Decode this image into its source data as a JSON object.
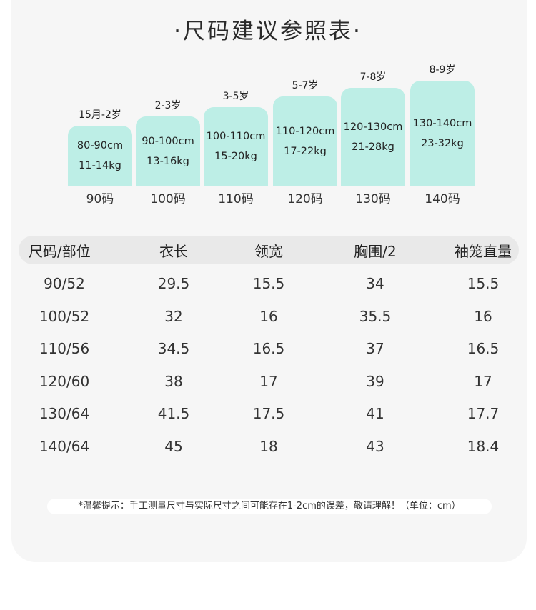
{
  "title": "·尺码建议参照表·",
  "size_bars": [
    {
      "age": "15月-2岁",
      "height": "80-90cm",
      "weight": "11-14kg",
      "size": "90码",
      "fill_level": 0.57
    },
    {
      "age": "2-3岁",
      "height": "90-100cm",
      "weight": "13-16kg",
      "size": "100码",
      "fill_level": 0.66
    },
    {
      "age": "3-5岁",
      "height": "100-110cm",
      "weight": "15-20kg",
      "size": "110码",
      "fill_level": 0.75
    },
    {
      "age": "5-7岁",
      "height": "110-120cm",
      "weight": "17-22kg",
      "size": "120码",
      "fill_level": 0.85
    },
    {
      "age": "7-8岁",
      "height": "120-130cm",
      "weight": "21-28kg",
      "size": "130码",
      "fill_level": 0.93
    },
    {
      "age": "8-9岁",
      "height": "130-140cm",
      "weight": "23-32kg",
      "size": "140码",
      "fill_level": 1.0
    }
  ],
  "table": {
    "headers": [
      "尺码/部位",
      "衣长",
      "领宽",
      "胸围/2",
      "袖笼直量"
    ],
    "rows": [
      [
        "90/52",
        "29.5",
        "15.5",
        "34",
        "15.5"
      ],
      [
        "100/52",
        "32",
        "16",
        "35.5",
        "16"
      ],
      [
        "110/56",
        "34.5",
        "16.5",
        "37",
        "16.5"
      ],
      [
        "120/60",
        "38",
        "17",
        "39",
        "17"
      ],
      [
        "130/64",
        "41.5",
        "17.5",
        "41",
        "17.7"
      ],
      [
        "140/64",
        "45",
        "18",
        "43",
        "18.4"
      ]
    ]
  },
  "note": "*温馨提示：手工测量尺寸与实际尺寸之间可能存在1-2cm的误差，敬请理解！（单位：cm）",
  "colors": {
    "bar": "#bdeee6",
    "panel": "#f6f6f6",
    "header_row": "#e9e9e9"
  }
}
